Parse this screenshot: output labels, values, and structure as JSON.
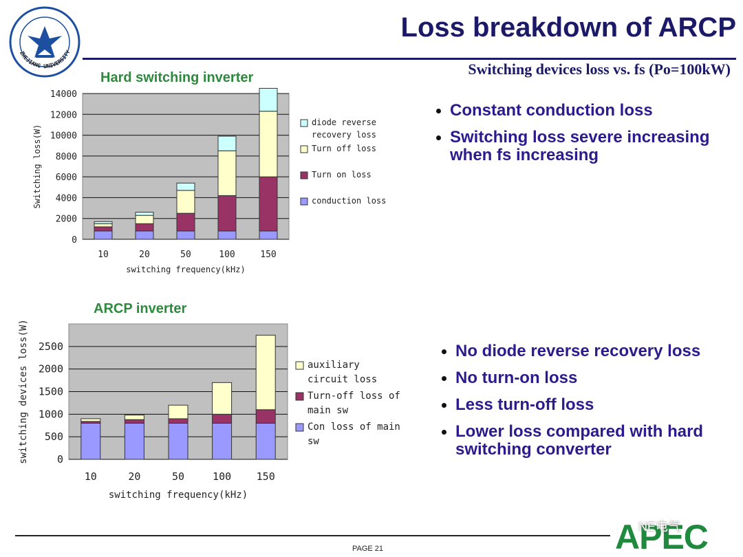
{
  "header": {
    "title": "Loss breakdown of ARCP",
    "subtitle": "Switching devices loss vs. fs (Po=100kW)",
    "logo_text": "ZHEJIANG UNIVERSITY"
  },
  "chart_data": [
    {
      "type": "bar",
      "stacked": true,
      "title": "Hard switching inverter",
      "xlabel": "switching frequency(kHz)",
      "ylabel": "Switching loss(W)",
      "categories": [
        "10",
        "20",
        "50",
        "100",
        "150"
      ],
      "ylim": [
        0,
        14000
      ],
      "yticks": [
        "0",
        "2000",
        "4000",
        "6000",
        "8000",
        "10000",
        "12000",
        "14000"
      ],
      "grid": true,
      "series": [
        {
          "name": "conduction loss",
          "color": "#9999ff",
          "values": [
            800,
            800,
            800,
            800,
            800
          ]
        },
        {
          "name": "Turn on loss",
          "color": "#993366",
          "values": [
            400,
            700,
            1700,
            3400,
            5200
          ]
        },
        {
          "name": "Turn off loss",
          "color": "#ffffcc",
          "values": [
            300,
            800,
            2200,
            4300,
            6300
          ]
        },
        {
          "name": "diode reverse recovery loss",
          "color": "#ccffff",
          "values": [
            200,
            300,
            700,
            1400,
            2200
          ]
        }
      ],
      "legend_order": [
        3,
        2,
        1,
        0
      ],
      "legend_placement": "right"
    },
    {
      "type": "bar",
      "stacked": true,
      "title": "ARCP inverter",
      "xlabel": "switching frequency(kHz)",
      "ylabel": "switching devices loss(W)",
      "categories": [
        "10",
        "20",
        "50",
        "100",
        "150"
      ],
      "ylim": [
        0,
        3000
      ],
      "yticks": [
        "0",
        "500",
        "1000",
        "1500",
        "2000",
        "2500"
      ],
      "grid": true,
      "series": [
        {
          "name": "Con loss of main sw",
          "color": "#9999ff",
          "values": [
            800,
            800,
            800,
            800,
            800
          ]
        },
        {
          "name": "Turn-off loss of main sw",
          "color": "#993366",
          "values": [
            40,
            80,
            100,
            200,
            300
          ]
        },
        {
          "name": "auxiliary circuit loss",
          "color": "#ffffcc",
          "values": [
            60,
            100,
            300,
            700,
            1650
          ]
        }
      ],
      "legend_order": [
        2,
        1,
        0
      ],
      "legend_placement": "right"
    }
  ],
  "bullets_top": [
    "Constant conduction loss",
    "Switching loss severe increasing when fs increasing"
  ],
  "bullets_bottom": [
    "No diode reverse recovery loss",
    "No turn-on loss",
    "Less turn-off loss",
    "Lower loss compared with hard switching converter"
  ],
  "footer": {
    "page": "PAGE 21",
    "brand": "APEC",
    "wechat": "NE电气"
  }
}
